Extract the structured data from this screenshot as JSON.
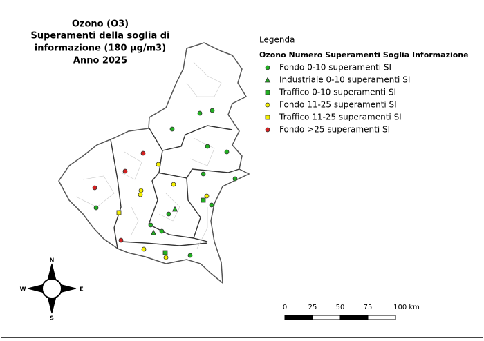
{
  "title": [
    "Ozono (O3)",
    "Superamenti della soglia di",
    "informazione (180 µg/m3)",
    "Anno 2025"
  ],
  "legend": {
    "title": "Legenda",
    "subtitle": "Ozono Numero Superamenti Soglia Informazione",
    "items": [
      {
        "label": "Fondo 0-10 superamenti SI",
        "shape": "circle",
        "color": "#22b022"
      },
      {
        "label": "Industriale 0-10 superamenti SI",
        "shape": "triangle",
        "color": "#22b022"
      },
      {
        "label": "Traffico 0-10 superamenti SI",
        "shape": "square",
        "color": "#22b022"
      },
      {
        "label": "Fondo 11-25  superamenti SI",
        "shape": "circle",
        "color": "#f5f000"
      },
      {
        "label": "Traffico 11-25  superamenti SI",
        "shape": "square",
        "color": "#f5f000"
      },
      {
        "label": "Fondo >25  superamenti SI",
        "shape": "circle",
        "color": "#d42020"
      }
    ]
  },
  "scale_bar": {
    "labels": [
      "0",
      "25",
      "50",
      "75",
      "100 km"
    ]
  },
  "compass": {
    "north": "N",
    "east": "E",
    "south": "S",
    "west": "W"
  }
}
